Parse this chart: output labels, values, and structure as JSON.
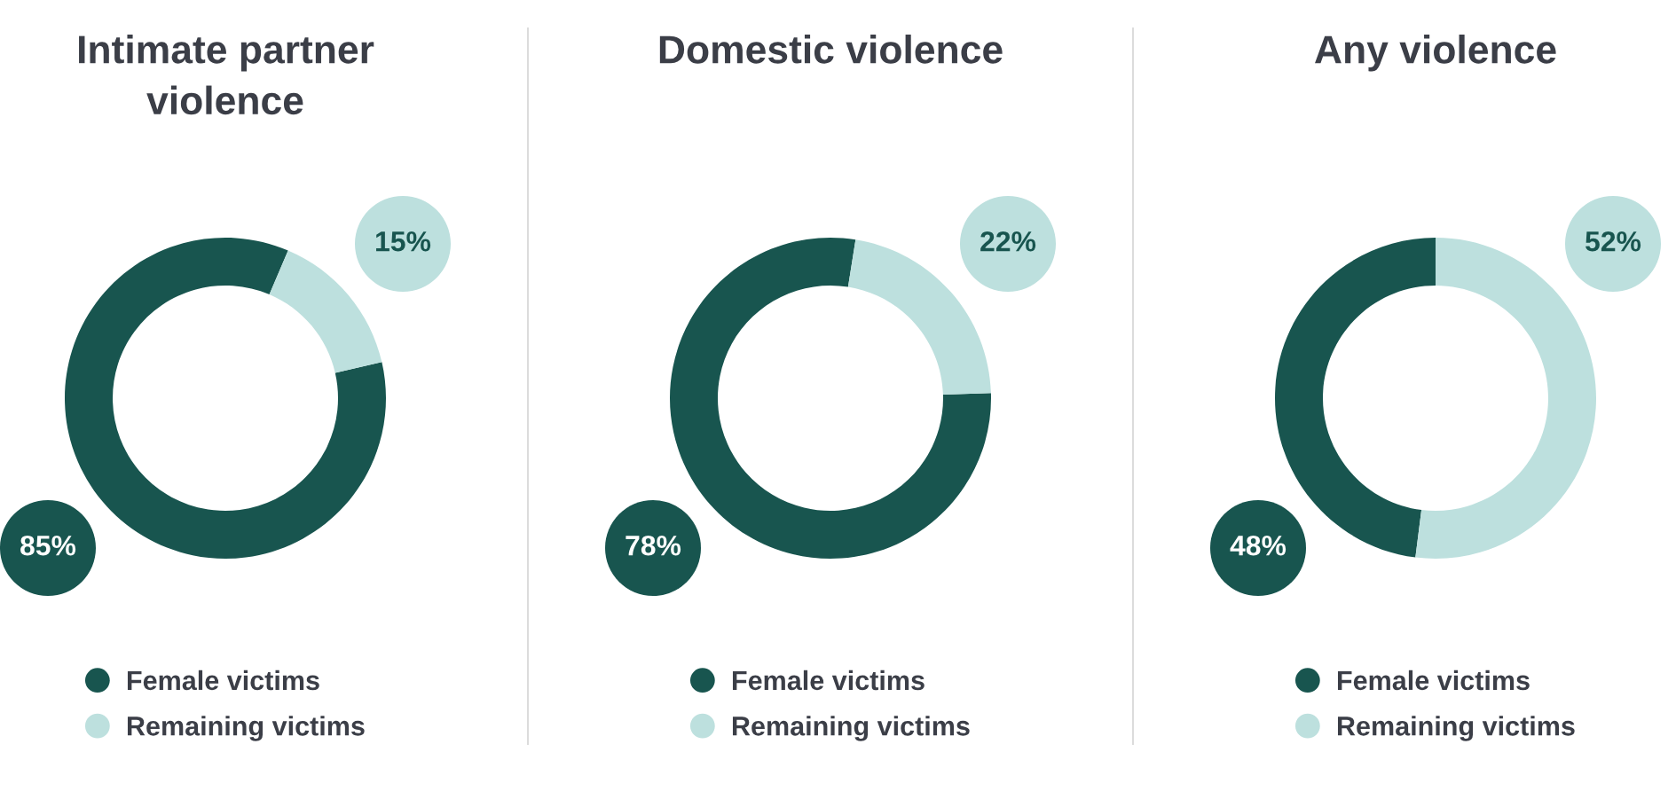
{
  "chart_data": [
    {
      "type": "donut",
      "title": "Intimate partner violence",
      "categories": [
        "Female victims",
        "Remaining victims"
      ],
      "values": [
        85,
        15
      ],
      "colors": [
        "#18554f",
        "#bde0de"
      ],
      "value_labels": [
        "85%",
        "15%"
      ],
      "legend": "bottom"
    },
    {
      "type": "donut",
      "title": "Domestic violence",
      "categories": [
        "Female victims",
        "Remaining victims"
      ],
      "values": [
        78,
        22
      ],
      "colors": [
        "#18554f",
        "#bde0de"
      ],
      "value_labels": [
        "78%",
        "22%"
      ],
      "legend": "bottom"
    },
    {
      "type": "donut",
      "title": "Any violence",
      "categories": [
        "Female victims",
        "Remaining victims"
      ],
      "values": [
        48,
        52
      ],
      "colors": [
        "#18554f",
        "#bde0de"
      ],
      "value_labels": [
        "48%",
        "52%"
      ],
      "legend": "bottom"
    }
  ]
}
